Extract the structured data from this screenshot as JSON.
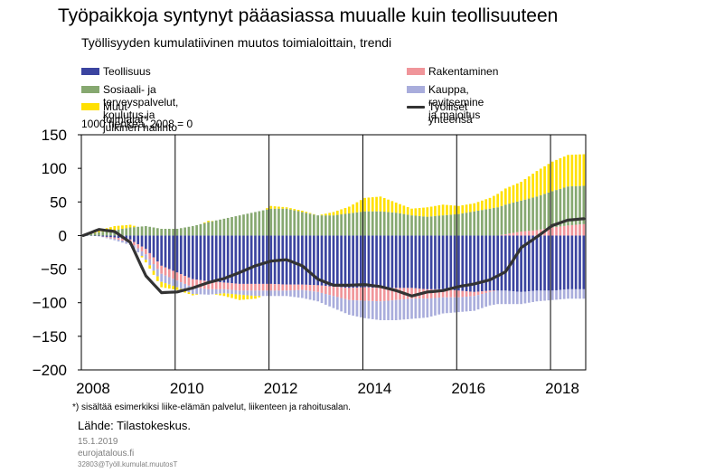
{
  "title": "Työpaikkoja syntynyt pääasiassa muualle kuin teollisuuteen",
  "subtitle": "Työllisyyden kumulatiivinen muutos toimialoittain, trendi",
  "unit_label": "1000 henkeä, 2008 = 0",
  "footnote": "*) sisältää esimerkiksi liike-elämän palvelut, liikenteen ja rahoitusalan.",
  "source": "Lähde: Tilastokeskus.",
  "date": "15.1.2019",
  "site": "eurojatalous.fi",
  "code": "32803@Työll.kumulat.muutosT",
  "legend": [
    {
      "key": "teollisuus",
      "label": "Teollisuus",
      "color": "#3b44a0"
    },
    {
      "key": "rakentaminen",
      "label": "Rakentaminen",
      "color": "#f0959a"
    },
    {
      "key": "sote",
      "label": "Sosiaali- ja terveyspalvelut, koulutus ja julkinen hallinto",
      "color": "#86a870"
    },
    {
      "key": "kauppa",
      "label": "Kauppa, ravitsemine ja majoitus",
      "color": "#a9addc"
    },
    {
      "key": "muut",
      "label": "Muut toimialat*",
      "color": "#ffe000"
    },
    {
      "key": "total",
      "label": "Työlliset yhteensä",
      "color": "#333333"
    }
  ],
  "chart_data": {
    "type": "bar",
    "stacked": true,
    "x_start": "2008-01",
    "frequency": "monthly",
    "x_ticks": [
      "2008",
      "2010",
      "2012",
      "2014",
      "2016",
      "2018"
    ],
    "ylim": [
      -200,
      150
    ],
    "y_ticks": [
      150,
      100,
      50,
      0,
      -50,
      -100,
      -150,
      -200
    ],
    "grid": "vertical",
    "legend_position": "top",
    "anchors": {
      "t": [
        0,
        4,
        8,
        12,
        16,
        20,
        24,
        28,
        32,
        36,
        40,
        44,
        48,
        52,
        56,
        60,
        64,
        68,
        72,
        76,
        80,
        84,
        88,
        92,
        96,
        100,
        104,
        108,
        112,
        116,
        120,
        124,
        128
      ],
      "teollisuus": [
        0,
        -1,
        -3,
        -6,
        -20,
        -45,
        -55,
        -65,
        -68,
        -70,
        -72,
        -72,
        -72,
        -73,
        -73,
        -74,
        -76,
        -78,
        -77,
        -78,
        -78,
        -78,
        -80,
        -80,
        -82,
        -84,
        -82,
        -82,
        -84,
        -82,
        -82,
        -80,
        -80
      ],
      "rakentaminen": [
        0,
        0,
        -2,
        -4,
        -8,
        -12,
        -12,
        -12,
        -12,
        -10,
        -10,
        -10,
        -10,
        -9,
        -8,
        -10,
        -14,
        -18,
        -20,
        -20,
        -18,
        -16,
        -14,
        -12,
        -10,
        -6,
        -2,
        2,
        6,
        8,
        12,
        15,
        17
      ],
      "kauppa": [
        0,
        0,
        -2,
        -4,
        -8,
        -12,
        -10,
        -10,
        -8,
        -6,
        -6,
        -8,
        -8,
        -8,
        -12,
        -14,
        -18,
        -22,
        -26,
        -28,
        -30,
        -30,
        -28,
        -24,
        -22,
        -22,
        -20,
        -20,
        -18,
        -16,
        -14,
        -14,
        -14
      ],
      "sote": [
        0,
        5,
        8,
        12,
        14,
        10,
        10,
        14,
        20,
        25,
        30,
        35,
        40,
        40,
        35,
        30,
        30,
        33,
        36,
        36,
        34,
        30,
        28,
        30,
        32,
        36,
        40,
        44,
        46,
        50,
        54,
        58,
        57
      ],
      "muut": [
        0,
        3,
        6,
        4,
        -4,
        -8,
        -4,
        -2,
        2,
        -4,
        -8,
        -4,
        4,
        2,
        2,
        0,
        5,
        10,
        20,
        22,
        15,
        10,
        14,
        16,
        12,
        12,
        16,
        24,
        28,
        38,
        44,
        47,
        47
      ],
      "total": [
        0,
        9,
        6,
        -10,
        -60,
        -85,
        -84,
        -78,
        -70,
        -64,
        -55,
        -45,
        -38,
        -36,
        -45,
        -65,
        -74,
        -74,
        -73,
        -76,
        -82,
        -90,
        -84,
        -82,
        -76,
        -72,
        -66,
        -54,
        -18,
        -2,
        15,
        23,
        25
      ]
    }
  }
}
